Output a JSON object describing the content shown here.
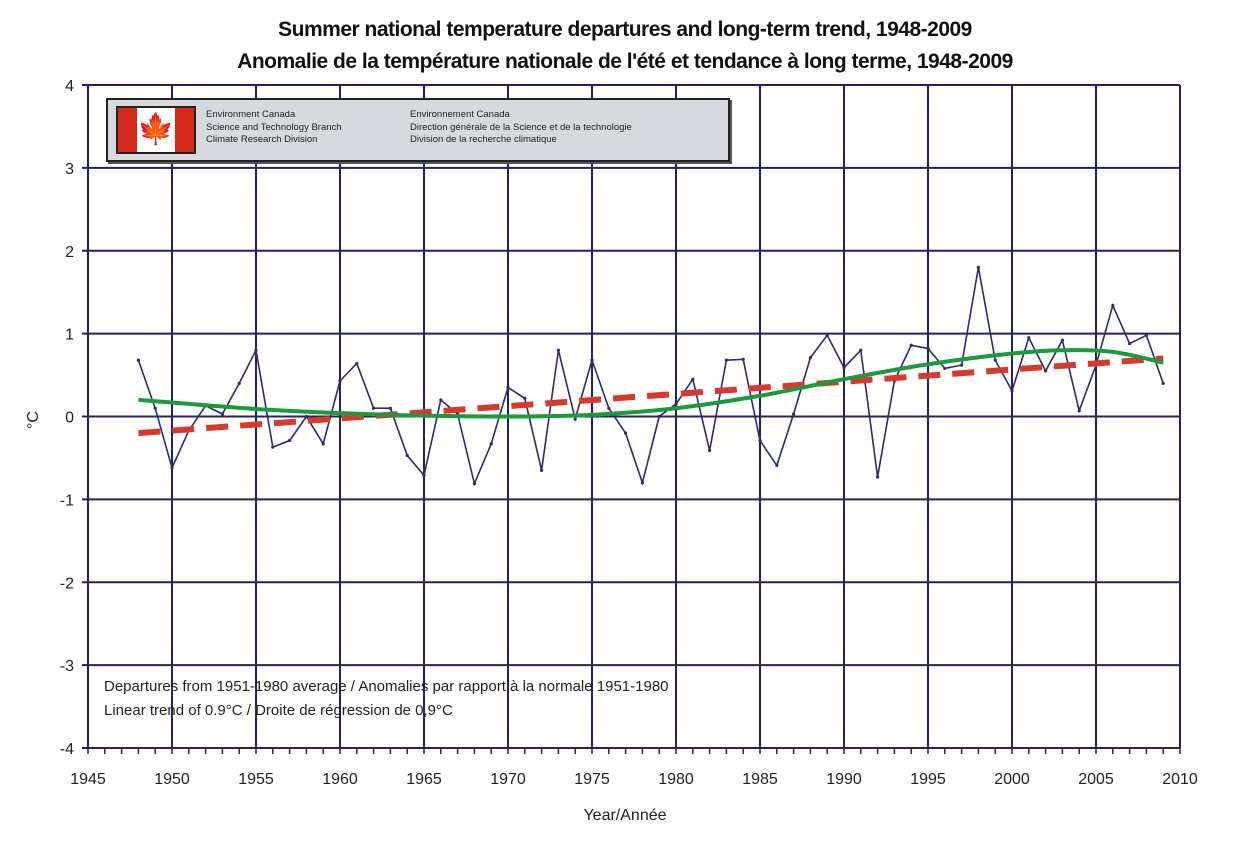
{
  "title": {
    "line1": "Summer national temperature departures and long-term trend, 1948-2009",
    "line2": "Anomalie de la température nationale de l'été et tendance à long terme, 1948-2009"
  },
  "logo": {
    "english": [
      "Environment Canada",
      "Science and Technology Branch",
      "Climate Research Division"
    ],
    "french": [
      "Environnement Canada",
      "Direction générale de la Science et de la technologie",
      "Division de la recherche climatique"
    ],
    "flag_icon": "canada-flag-maple-leaf"
  },
  "chart_data": {
    "type": "line",
    "xlabel": "Year/Année",
    "ylabel": "°C",
    "xlim": [
      1945,
      2010
    ],
    "ylim": [
      -4,
      4
    ],
    "x_ticks": [
      1945,
      1950,
      1955,
      1960,
      1965,
      1970,
      1975,
      1980,
      1985,
      1990,
      1995,
      2000,
      2005,
      2010
    ],
    "y_ticks": [
      -4,
      -3,
      -2,
      -1,
      0,
      1,
      2,
      3,
      4
    ],
    "grid": true,
    "annotations": [
      "Departures from 1951-1980 average / Anomalies par rapport à la normale 1951-1980",
      "Linear trend of 0.9°C / Droite de régression de 0,9°C"
    ],
    "series": [
      {
        "kind": "anomaly",
        "color": "#2b2b6e",
        "x": [
          1948,
          1949,
          1950,
          1951,
          1952,
          1953,
          1954,
          1955,
          1956,
          1957,
          1958,
          1959,
          1960,
          1961,
          1962,
          1963,
          1964,
          1965,
          1966,
          1967,
          1968,
          1969,
          1970,
          1971,
          1972,
          1973,
          1974,
          1975,
          1976,
          1977,
          1978,
          1979,
          1980,
          1981,
          1982,
          1983,
          1984,
          1985,
          1986,
          1987,
          1988,
          1989,
          1990,
          1991,
          1992,
          1993,
          1994,
          1995,
          1996,
          1997,
          1998,
          1999,
          2000,
          2001,
          2002,
          2003,
          2004,
          2005,
          2006,
          2007,
          2008,
          2009
        ],
        "y": [
          0.68,
          0.1,
          -0.62,
          -0.17,
          0.13,
          0.03,
          0.4,
          0.8,
          -0.37,
          -0.29,
          0.0,
          -0.33,
          0.43,
          0.64,
          0.1,
          0.1,
          -0.47,
          -0.71,
          0.2,
          0.03,
          -0.81,
          -0.33,
          0.35,
          0.22,
          -0.65,
          0.8,
          -0.03,
          0.68,
          0.1,
          -0.2,
          -0.8,
          0.0,
          0.15,
          0.45,
          -0.41,
          0.68,
          0.69,
          -0.29,
          -0.59,
          0.03,
          0.71,
          0.98,
          0.59,
          0.8,
          -0.73,
          0.43,
          0.86,
          0.82,
          0.58,
          0.62,
          1.8,
          0.68,
          0.31,
          0.95,
          0.55,
          0.92,
          0.07,
          0.62,
          1.34,
          0.88,
          0.98,
          0.4
        ]
      },
      {
        "kind": "linear-trend",
        "style": "dashed",
        "color": "#d63a2f",
        "x": [
          1948,
          2009
        ],
        "y": [
          -0.2,
          0.7
        ]
      },
      {
        "kind": "smoothed-trend",
        "color": "#1a9a3a",
        "x": [
          1948,
          1955,
          1960,
          1965,
          1970,
          1975,
          1980,
          1985,
          1990,
          1995,
          2000,
          2003,
          2006,
          2009
        ],
        "y": [
          0.2,
          0.09,
          0.04,
          0.01,
          0.0,
          0.02,
          0.1,
          0.25,
          0.45,
          0.63,
          0.76,
          0.8,
          0.78,
          0.65
        ]
      }
    ]
  }
}
